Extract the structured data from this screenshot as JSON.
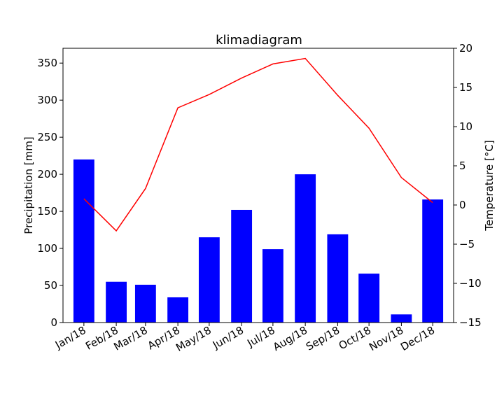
{
  "chart_data": {
    "type": "bar+line",
    "title": "klimadiagram",
    "xlabel": "",
    "ylabel_left": "Precipitation [mm]",
    "ylabel_right": "Temperature [°C]",
    "categories": [
      "Jan/18",
      "Feb/18",
      "Mar/18",
      "Apr/18",
      "May/18",
      "Jun/18",
      "Jul/18",
      "Aug/18",
      "Sep/18",
      "Oct/18",
      "Nov/18",
      "Dec/18"
    ],
    "x_days": [
      0,
      31,
      59,
      90,
      120,
      151,
      181,
      212,
      243,
      273,
      304,
      334
    ],
    "ylim_left": [
      0,
      370
    ],
    "yticks_left": [
      0,
      50,
      100,
      150,
      200,
      250,
      300,
      350
    ],
    "ylim_right": [
      -15,
      20
    ],
    "yticks_right": [
      -15,
      -10,
      -5,
      0,
      5,
      10,
      15,
      20
    ],
    "series": [
      {
        "kind": "bar",
        "axis": "left",
        "color": "#0000ff",
        "values": [
          220,
          55,
          51,
          34,
          115,
          152,
          99,
          200,
          119,
          66,
          11,
          166
        ]
      },
      {
        "kind": "line",
        "axis": "right",
        "color": "#ff0000",
        "values": [
          0.8,
          -3.3,
          2.1,
          12.4,
          14.1,
          16.2,
          18.0,
          18.7,
          14.0,
          9.8,
          3.5,
          0.3
        ]
      }
    ],
    "grid": false
  }
}
